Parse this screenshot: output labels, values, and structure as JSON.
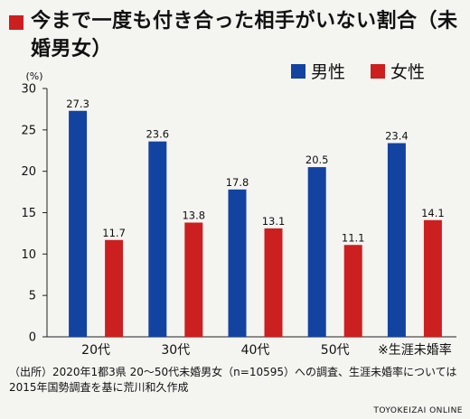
{
  "title": "今まで一度も付き合った相手がいない割合（未婚男女）",
  "source_note": "（出所）2020年1都3県 20〜50代未婚男女（n=10595）への調査、生涯未婚率については2015年国勢調査を基に荒川和久作成",
  "publisher": "TOYOKEIZAI ONLINE",
  "colors": {
    "male": "#1243a0",
    "female": "#cc1f1f",
    "title_marker": "#cc1f1f"
  },
  "chart_data": {
    "type": "bar",
    "ylabel": "(%)",
    "ylim": [
      0,
      30
    ],
    "yticks": [
      0,
      5,
      10,
      15,
      20,
      25,
      30
    ],
    "categories": [
      "20代",
      "30代",
      "40代",
      "50代",
      "※生涯未婚率"
    ],
    "series": [
      {
        "name": "男性",
        "values": [
          27.3,
          23.6,
          17.8,
          20.5,
          23.4
        ]
      },
      {
        "name": "女性",
        "values": [
          11.7,
          13.8,
          13.1,
          11.1,
          14.1
        ]
      }
    ],
    "value_labels": {
      "男性": [
        "27.3",
        "23.6",
        "17.8",
        "20.5",
        "23.4"
      ],
      "女性": [
        "11.7",
        "13.8",
        "13.1",
        "11.1",
        "14.1"
      ]
    },
    "legend_position": "top-right",
    "grid": false
  }
}
